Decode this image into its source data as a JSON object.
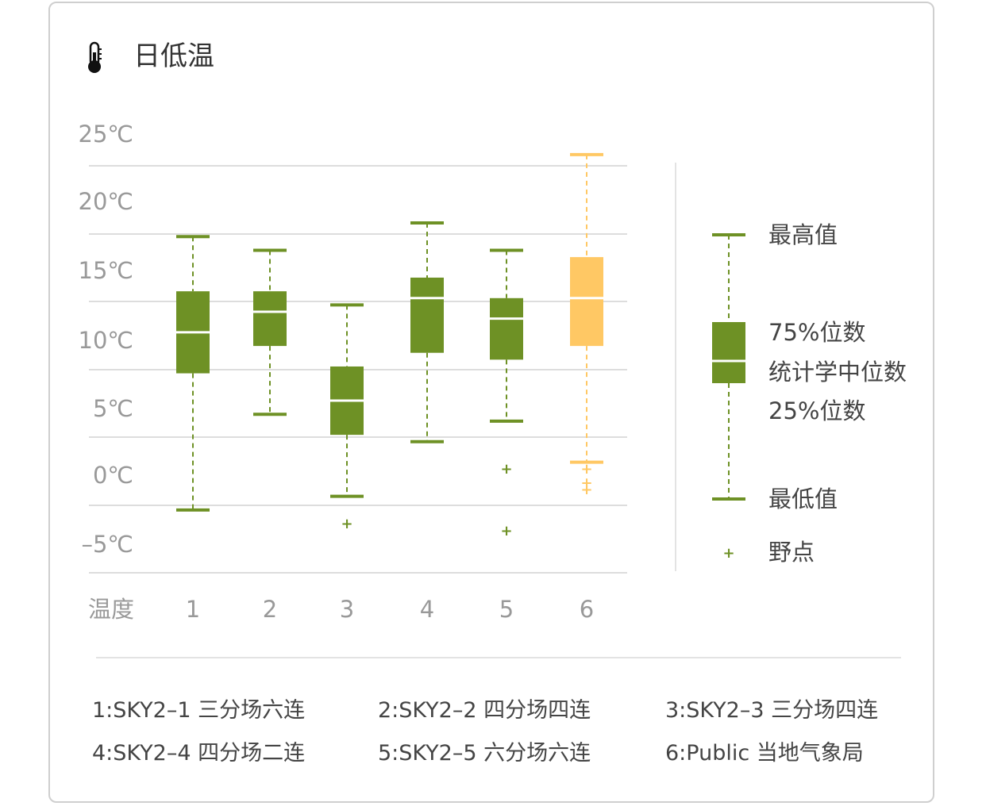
{
  "header": {
    "title": "日低温",
    "icon": "thermometer-icon"
  },
  "colors": {
    "primary": "#6e9125",
    "highlight": "#ffc864",
    "grid": "#dddddd",
    "tick": "#999999",
    "text": "#444444"
  },
  "chart_data": {
    "type": "boxplot",
    "ylim": [
      -7.5,
      25
    ],
    "yticks": [
      25,
      20,
      15,
      10,
      5,
      0,
      -5
    ],
    "ytick_labels": [
      "25℃",
      "20℃",
      "15℃",
      "10℃",
      "5℃",
      "0℃",
      "–5℃"
    ],
    "xlabel": "温度",
    "grid": true,
    "legend_position": "right",
    "boxes": [
      {
        "label": "1",
        "min": -2.5,
        "q1": 7.5,
        "median": 10.5,
        "q3": 13.5,
        "max": 17.5,
        "outliers": [],
        "highlight": false
      },
      {
        "label": "2",
        "min": 4.5,
        "q1": 9.5,
        "median": 12,
        "q3": 13.5,
        "max": 16.5,
        "outliers": [],
        "highlight": false
      },
      {
        "label": "3",
        "min": -1.5,
        "q1": 3,
        "median": 5.5,
        "q3": 8,
        "max": 12.5,
        "outliers": [
          -3.5
        ],
        "highlight": false
      },
      {
        "label": "4",
        "min": 2.5,
        "q1": 9,
        "median": 13,
        "q3": 14.5,
        "max": 18.5,
        "outliers": [],
        "highlight": false
      },
      {
        "label": "5",
        "min": 4,
        "q1": 8.5,
        "median": 11.5,
        "q3": 13,
        "max": 16.5,
        "outliers": [
          0.5,
          -4
        ],
        "highlight": false
      },
      {
        "label": "6",
        "min": 1,
        "q1": 9.5,
        "median": 13,
        "q3": 16,
        "max": 23.5,
        "outliers": [
          0.5,
          -0.5,
          -1
        ],
        "highlight": true
      }
    ],
    "legend": {
      "max": "最高值",
      "q3": "75%位数",
      "median": "统计学中位数",
      "q1": "25%位数",
      "min": "最低值",
      "outlier": "野点"
    }
  },
  "notes": [
    "1:SKY2–1 三分场六连",
    "2:SKY2–2 四分场四连",
    "3:SKY2–3 三分场四连",
    "4:SKY2–4 四分场二连",
    "5:SKY2–5 六分场六连",
    "6:Public 当地气象局"
  ]
}
